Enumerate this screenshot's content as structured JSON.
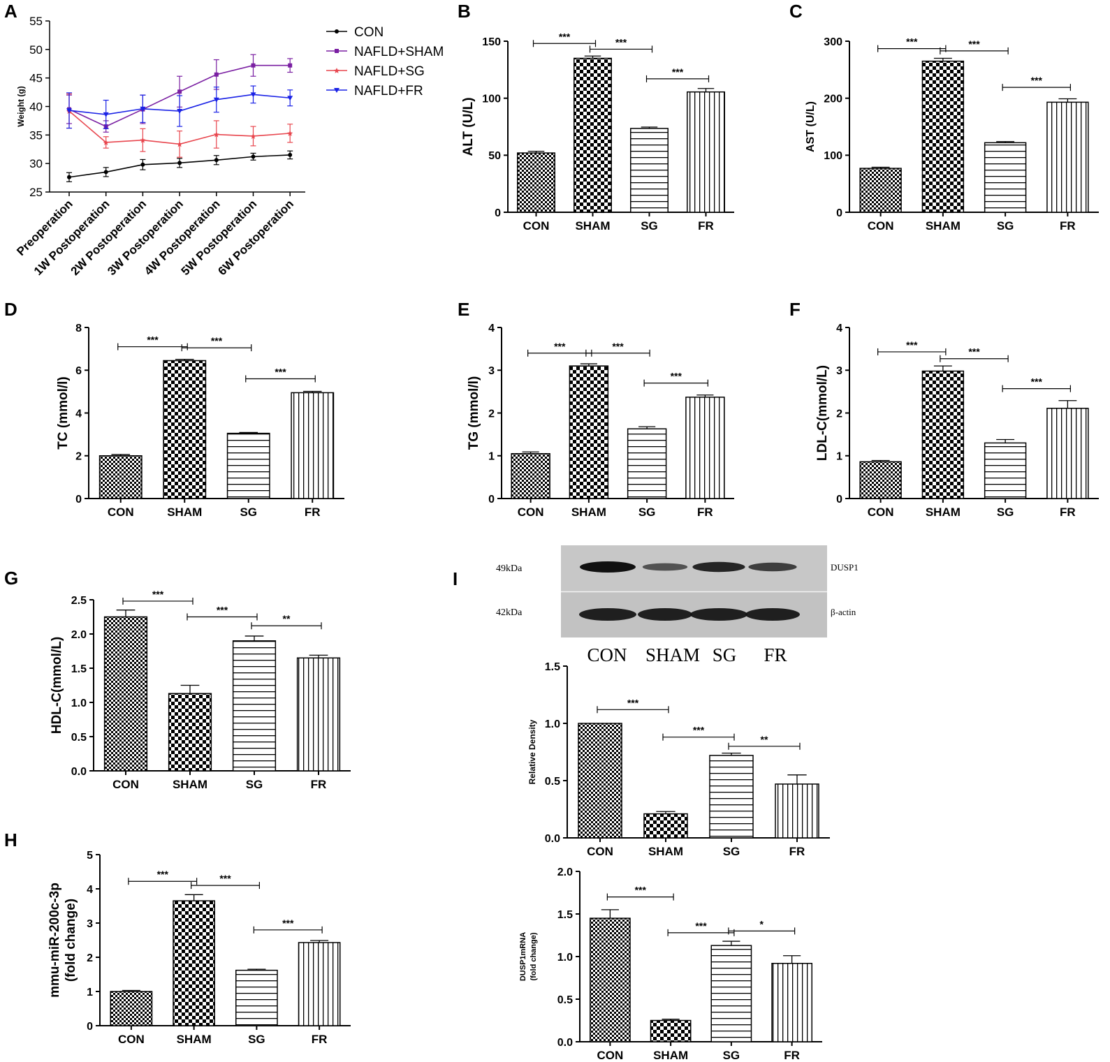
{
  "colors": {
    "axis": "#000000",
    "con": "#000000",
    "sham": "#7a1fa2",
    "sg": "#e8464e",
    "fr": "#1a22e6",
    "blot_bg": "#c4c4c4",
    "blot_band": "#111111"
  },
  "chart_data": [
    {
      "panel": "A",
      "type": "line",
      "ylabel": "Weight (g)",
      "ylim": [
        25,
        55
      ],
      "yticks": [
        "25",
        "30",
        "35",
        "40",
        "45",
        "50",
        "55"
      ],
      "categories": [
        "Preoperation",
        "1W Postoperation",
        "2W Postoperation",
        "3W Postoperation",
        "4W Postoperation",
        "5W Postoperation",
        "6W Postoperation"
      ],
      "series": [
        {
          "name": "CON",
          "values": [
            27.6,
            28.5,
            29.8,
            30.1,
            30.6,
            31.2,
            31.5
          ],
          "err": [
            0.8,
            0.8,
            0.9,
            0.8,
            0.8,
            0.6,
            0.7
          ]
        },
        {
          "name": "NAFLD+SHAM",
          "values": [
            39.5,
            36.5,
            39.5,
            42.6,
            45.6,
            47.2,
            47.2
          ],
          "err": [
            2.5,
            1.0,
            2.5,
            2.7,
            2.6,
            1.9,
            1.2
          ]
        },
        {
          "name": "NAFLD+SG",
          "values": [
            39.2,
            33.7,
            34.1,
            33.4,
            35.1,
            34.8,
            35.3
          ],
          "err": [
            3.0,
            1.0,
            2.0,
            2.3,
            2.4,
            1.7,
            1.6
          ]
        },
        {
          "name": "NAFLD+FR",
          "values": [
            39.3,
            38.6,
            39.6,
            39.2,
            41.2,
            42.1,
            41.5
          ],
          "err": [
            3.1,
            2.5,
            2.4,
            2.7,
            2.2,
            1.5,
            1.4
          ]
        }
      ]
    },
    {
      "panel": "B",
      "type": "bar",
      "ylabel": "ALT (U/L)",
      "ylim": [
        0,
        150
      ],
      "yticks": [
        "0",
        "50",
        "100",
        "150"
      ],
      "categories": [
        "CON",
        "SHAM",
        "SG",
        "FR"
      ],
      "values": [
        52,
        135,
        73.5,
        105.5
      ],
      "err": [
        1.5,
        2.0,
        1.2,
        3.0
      ],
      "sig": [
        {
          "from": 0,
          "to": 1,
          "label": "***",
          "y": 148
        },
        {
          "from": 1,
          "to": 2,
          "label": "***",
          "y": 143
        },
        {
          "from": 2,
          "to": 3,
          "label": "***",
          "y": 117
        }
      ]
    },
    {
      "panel": "C",
      "type": "bar",
      "ylabel": "AST (U/L)",
      "ylim": [
        0,
        300
      ],
      "yticks": [
        "0",
        "100",
        "200",
        "300"
      ],
      "categories": [
        "CON",
        "SHAM",
        "SG",
        "FR"
      ],
      "values": [
        77,
        265,
        122,
        193
      ],
      "err": [
        2,
        5,
        2,
        6
      ],
      "sig": [
        {
          "from": 0,
          "to": 1,
          "label": "***",
          "y": 287
        },
        {
          "from": 1,
          "to": 2,
          "label": "***",
          "y": 283
        },
        {
          "from": 2,
          "to": 3,
          "label": "***",
          "y": 219
        }
      ]
    },
    {
      "panel": "D",
      "type": "bar",
      "ylabel": "TC (mmol/l)",
      "ylim": [
        0,
        8
      ],
      "yticks": [
        "0",
        "2",
        "4",
        "6",
        "8"
      ],
      "categories": [
        "CON",
        "SHAM",
        "SG",
        "FR"
      ],
      "values": [
        2.0,
        6.45,
        3.05,
        4.95
      ],
      "err": [
        0.06,
        0.06,
        0.04,
        0.06
      ],
      "sig": [
        {
          "from": 0,
          "to": 1,
          "label": "***",
          "y": 7.1
        },
        {
          "from": 1,
          "to": 2,
          "label": "***",
          "y": 7.05
        },
        {
          "from": 2,
          "to": 3,
          "label": "***",
          "y": 5.6
        }
      ]
    },
    {
      "panel": "E",
      "type": "bar",
      "ylabel": "TG (mmol/l)",
      "ylim": [
        0,
        4
      ],
      "yticks": [
        "0",
        "1",
        "2",
        "3",
        "4"
      ],
      "categories": [
        "CON",
        "SHAM",
        "SG",
        "FR"
      ],
      "values": [
        1.05,
        3.1,
        1.63,
        2.37
      ],
      "err": [
        0.04,
        0.05,
        0.05,
        0.05
      ],
      "sig": [
        {
          "from": 0,
          "to": 1,
          "label": "***",
          "y": 3.4
        },
        {
          "from": 1,
          "to": 2,
          "label": "***",
          "y": 3.4
        },
        {
          "from": 2,
          "to": 3,
          "label": "***",
          "y": 2.7
        }
      ]
    },
    {
      "panel": "F",
      "type": "bar",
      "ylabel": "LDL-C(mmol/L)",
      "ylim": [
        0,
        4
      ],
      "yticks": [
        "0",
        "1",
        "2",
        "3",
        "4"
      ],
      "categories": [
        "CON",
        "SHAM",
        "SG",
        "FR"
      ],
      "values": [
        0.86,
        2.98,
        1.3,
        2.11
      ],
      "err": [
        0.03,
        0.12,
        0.08,
        0.18
      ],
      "sig": [
        {
          "from": 0,
          "to": 1,
          "label": "***",
          "y": 3.43
        },
        {
          "from": 1,
          "to": 2,
          "label": "***",
          "y": 3.27
        },
        {
          "from": 2,
          "to": 3,
          "label": "***",
          "y": 2.57
        }
      ]
    },
    {
      "panel": "G",
      "type": "bar",
      "ylabel": "HDL-C(mmol/L)",
      "ylim": [
        0,
        2.5
      ],
      "yticks": [
        "0.0",
        "0.5",
        "1.0",
        "1.5",
        "2.0",
        "2.5"
      ],
      "categories": [
        "CON",
        "SHAM",
        "SG",
        "FR"
      ],
      "values": [
        2.25,
        1.13,
        1.9,
        1.65
      ],
      "err": [
        0.1,
        0.12,
        0.07,
        0.04
      ],
      "sig": [
        {
          "from": 0,
          "to": 1,
          "label": "***",
          "y": 2.48
        },
        {
          "from": 1,
          "to": 2,
          "label": "***",
          "y": 2.25
        },
        {
          "from": 2,
          "to": 3,
          "label": "**",
          "y": 2.12
        }
      ]
    },
    {
      "panel": "H",
      "type": "bar",
      "ylabel": [
        "mmu-miR-200c-3p",
        "(fold change)"
      ],
      "ylim": [
        0,
        5
      ],
      "yticks": [
        "0",
        "1",
        "2",
        "3",
        "4",
        "5"
      ],
      "categories": [
        "CON",
        "SHAM",
        "SG",
        "FR"
      ],
      "values": [
        1.0,
        3.65,
        1.62,
        2.43
      ],
      "err": [
        0.03,
        0.18,
        0.03,
        0.06
      ],
      "sig": [
        {
          "from": 0,
          "to": 1,
          "label": "***",
          "y": 4.22
        },
        {
          "from": 1,
          "to": 2,
          "label": "***",
          "y": 4.1
        },
        {
          "from": 2,
          "to": 3,
          "label": "***",
          "y": 2.8
        }
      ]
    },
    {
      "panel": "I-density",
      "type": "bar",
      "ylabel": "Relative Density",
      "ylim": [
        0,
        1.5
      ],
      "yticks": [
        "0.0",
        "0.5",
        "1.0",
        "1.5"
      ],
      "categories": [
        "CON",
        "SHAM",
        "SG",
        "FR"
      ],
      "values": [
        1.0,
        0.21,
        0.72,
        0.47
      ],
      "err": [
        0.0,
        0.02,
        0.02,
        0.08
      ],
      "sig": [
        {
          "from": 0,
          "to": 1,
          "label": "***",
          "y": 1.12
        },
        {
          "from": 1,
          "to": 2,
          "label": "***",
          "y": 0.88
        },
        {
          "from": 2,
          "to": 3,
          "label": "**",
          "y": 0.8
        }
      ]
    },
    {
      "panel": "I-mrna",
      "type": "bar",
      "ylabel": [
        "DUSP1mRNA",
        "(fold change)"
      ],
      "ylim": [
        0,
        2.0
      ],
      "yticks": [
        "0.0",
        "0.5",
        "1.0",
        "1.5",
        "2.0"
      ],
      "categories": [
        "CON",
        "SHAM",
        "SG",
        "FR"
      ],
      "values": [
        1.45,
        0.25,
        1.13,
        0.92
      ],
      "err": [
        0.1,
        0.015,
        0.05,
        0.09
      ],
      "sig": [
        {
          "from": 0,
          "to": 1,
          "label": "***",
          "y": 1.7
        },
        {
          "from": 1,
          "to": 2,
          "label": "***",
          "y": 1.28
        },
        {
          "from": 2,
          "to": 3,
          "label": "*",
          "y": 1.3
        }
      ]
    }
  ],
  "panel_labels": [
    "A",
    "B",
    "C",
    "D",
    "E",
    "F",
    "G",
    "H",
    "I"
  ],
  "blot": {
    "kda_top": "49kDa",
    "kda_bottom": "42kDa",
    "protein_top": "DUSP1",
    "protein_bottom": "β-actin",
    "lanes": [
      "CON",
      "SHAM",
      "SG",
      "FR"
    ],
    "dusp1_intensity": [
      1.0,
      0.35,
      0.8,
      0.55
    ],
    "actin_intensity": [
      1.0,
      0.95,
      1.0,
      0.95
    ]
  }
}
